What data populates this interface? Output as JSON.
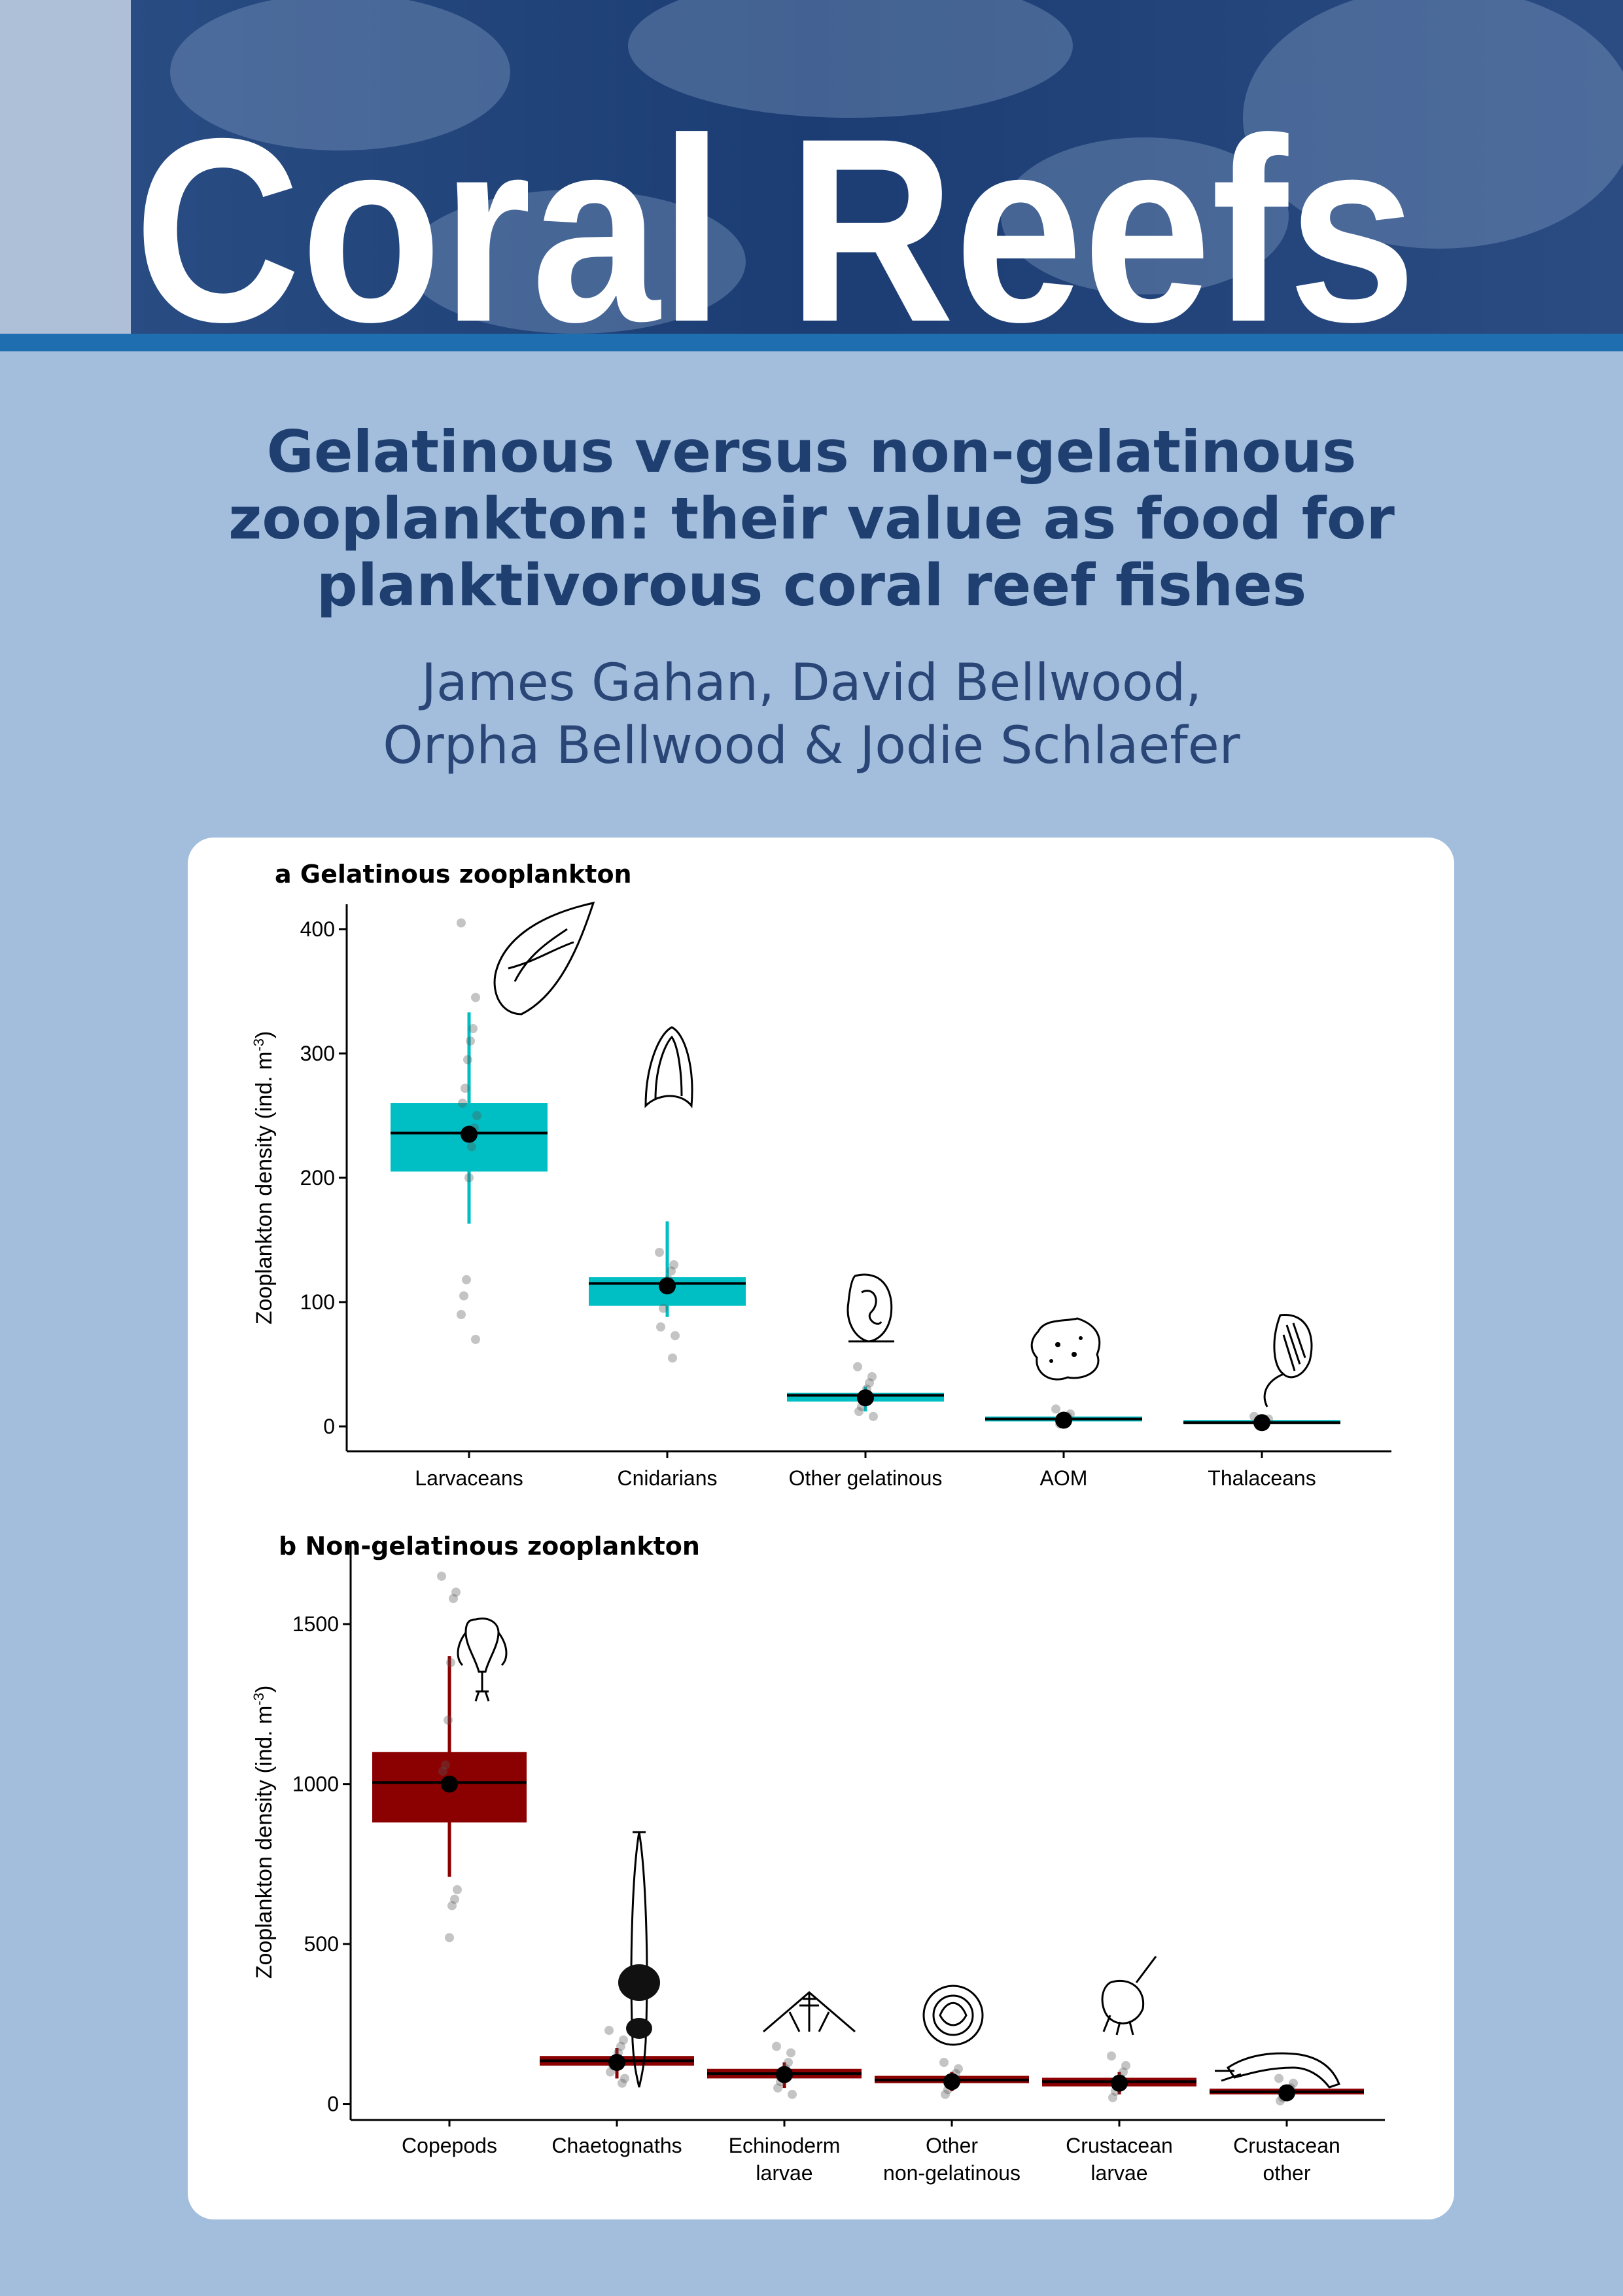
{
  "journal": {
    "name": "Coral Reefs"
  },
  "paper": {
    "title": "Gelatinous versus non-gelatinous zooplankton: their value as food for planktivorous coral reef fishes",
    "authors_line1": "James Gahan, David Bellwood,",
    "authors_line2": "Orpha Bellwood & Jodie Schlaefer"
  },
  "colors": {
    "gelatinous": "#00bfc4",
    "non_gelatinous": "#8b0000",
    "background": "#a3bedd",
    "banner": "#1c3f75",
    "title_text": "#1f3f71"
  },
  "icons": [
    "larvacean-icon",
    "cnidarian-icon",
    "ctenophore-icon",
    "aom-icon",
    "thaliacean-icon",
    "copepod-icon",
    "chaetognath-icon",
    "echinoderm-larva-icon",
    "other-larva-icon",
    "crustacean-larva-icon",
    "shrimp-icon"
  ],
  "chart_data": [
    {
      "type": "box",
      "panel_letter": "a",
      "title": "Gelatinous zooplankton",
      "ylabel": "Zooplankton density  (ind. m",
      "ylabel_sup": "-3",
      "ylabel_end": ")",
      "ylim": [
        -20,
        420
      ],
      "yticks": [
        0,
        100,
        200,
        300,
        400
      ],
      "categories": [
        "Larvaceans",
        "Cnidarians",
        "Other gelatinous",
        "AOM",
        "Thalaceans"
      ],
      "color": "#00bfc4",
      "boxes": [
        {
          "q1": 205,
          "median": 236,
          "q3": 260,
          "mean": 235,
          "lo": 163,
          "hi": 333,
          "points": [
            405,
            345,
            320,
            310,
            295,
            272,
            260,
            250,
            240,
            225,
            200,
            118,
            105,
            90,
            70
          ]
        },
        {
          "q1": 97,
          "median": 115,
          "q3": 120,
          "mean": 113,
          "lo": 88,
          "hi": 165,
          "points": [
            140,
            130,
            125,
            118,
            110,
            95,
            80,
            73,
            55
          ]
        },
        {
          "q1": 20,
          "median": 25,
          "q3": 27,
          "mean": 23,
          "lo": 12,
          "hi": 32,
          "points": [
            48,
            40,
            35,
            30,
            20,
            16,
            12,
            8
          ]
        },
        {
          "q1": 4,
          "median": 6,
          "q3": 8,
          "mean": 5,
          "lo": 2,
          "hi": 10,
          "points": [
            14,
            10,
            8,
            6,
            4,
            2
          ]
        },
        {
          "q1": 2,
          "median": 3,
          "q3": 5,
          "mean": 3,
          "lo": 1,
          "hi": 6,
          "points": [
            8,
            6,
            4,
            2,
            1
          ]
        }
      ]
    },
    {
      "type": "box",
      "panel_letter": "b",
      "title": "Non-gelatinous zooplankton",
      "ylabel": "Zooplankton density (ind. m",
      "ylabel_sup": "-3",
      "ylabel_end": ")",
      "ylim": [
        -50,
        1750
      ],
      "yticks": [
        0,
        500,
        1000,
        1500
      ],
      "categories": [
        "Copepods",
        "Chaetognaths",
        "Echinoderm larvae",
        "Other non-gelatinous",
        "Crustacean larvae",
        "Crustacean other"
      ],
      "category_lines": [
        [
          "Copepods"
        ],
        [
          "Chaetognaths"
        ],
        [
          "Echinoderm",
          "larvae"
        ],
        [
          "Other",
          "non-gelatinous"
        ],
        [
          "Crustacean",
          "larvae"
        ],
        [
          "Crustacean",
          "other"
        ]
      ],
      "color": "#8b0000",
      "boxes": [
        {
          "q1": 880,
          "median": 1005,
          "q3": 1100,
          "mean": 1000,
          "lo": 710,
          "hi": 1400,
          "points": [
            1650,
            1600,
            1580,
            1380,
            1200,
            1060,
            1040,
            670,
            640,
            620,
            520
          ]
        },
        {
          "q1": 120,
          "median": 135,
          "q3": 150,
          "mean": 130,
          "lo": 80,
          "hi": 175,
          "points": [
            230,
            200,
            180,
            160,
            140,
            120,
            100,
            80,
            65
          ]
        },
        {
          "q1": 80,
          "median": 95,
          "q3": 110,
          "mean": 92,
          "lo": 50,
          "hi": 130,
          "points": [
            180,
            160,
            130,
            110,
            90,
            70,
            50,
            30
          ]
        },
        {
          "q1": 65,
          "median": 75,
          "q3": 88,
          "mean": 70,
          "lo": 40,
          "hi": 100,
          "points": [
            130,
            110,
            95,
            80,
            60,
            45,
            30
          ]
        },
        {
          "q1": 55,
          "median": 70,
          "q3": 82,
          "mean": 65,
          "lo": 30,
          "hi": 100,
          "points": [
            150,
            120,
            100,
            80,
            60,
            40,
            20
          ]
        },
        {
          "q1": 30,
          "median": 38,
          "q3": 48,
          "mean": 35,
          "lo": 15,
          "hi": 55,
          "points": [
            80,
            65,
            50,
            40,
            30,
            20,
            10
          ]
        }
      ]
    }
  ]
}
